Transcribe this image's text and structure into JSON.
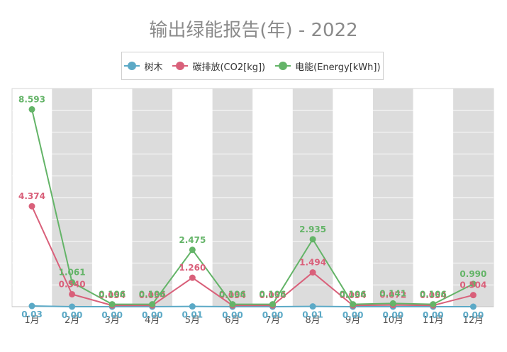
{
  "chart_data": {
    "type": "line",
    "title": "输出绿能报告(年) - 2022",
    "categories": [
      "1月",
      "2月",
      "3月",
      "4月",
      "5月",
      "6月",
      "7月",
      "8月",
      "9月",
      "10月",
      "11月",
      "12月"
    ],
    "series": [
      {
        "name": "树木",
        "color": "#5ba9c6",
        "values": [
          0.03,
          0.0,
          0.0,
          0.0,
          0.01,
          0.0,
          0.0,
          0.01,
          0.0,
          0.0,
          0.0,
          0.0
        ],
        "labels": [
          "0.03",
          "0.00",
          "0.00",
          "0.00",
          "0.01",
          "0.00",
          "0.00",
          "0.01",
          "0.00",
          "0.00",
          "0.00",
          "0.00"
        ]
      },
      {
        "name": "碳排放(CO2[kg])",
        "color": "#d9607a",
        "values": [
          4.374,
          0.54,
          0.054,
          0.054,
          1.26,
          0.054,
          0.054,
          1.494,
          0.054,
          0.072,
          0.054,
          0.504
        ],
        "labels": [
          "4.374",
          "0.540",
          "0.054",
          "0.054",
          "1.260",
          "0.054",
          "0.054",
          "1.494",
          "0.054",
          "0.072",
          "0.054",
          "0.504"
        ]
      },
      {
        "name": "电能(Energy[kWh])",
        "color": "#64b468",
        "values": [
          8.593,
          1.061,
          0.106,
          0.106,
          2.475,
          0.106,
          0.106,
          2.935,
          0.106,
          0.141,
          0.106,
          0.99
        ],
        "labels": [
          "8.593",
          "1.061",
          "0.106",
          "0.106",
          "2.475",
          "0.106",
          "0.106",
          "2.935",
          "0.106",
          "0.141",
          "0.106",
          "0.990"
        ]
      }
    ],
    "ylim": [
      0,
      9.5
    ],
    "grid": true,
    "legend_position": "top-center",
    "alternate_band_color": "#dcdcdc"
  }
}
